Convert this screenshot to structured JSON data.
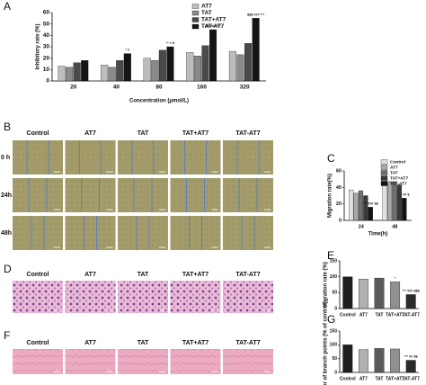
{
  "chart_data": [
    {
      "type": "bar",
      "panel": "A",
      "y_label": "Inhibitory rate (%)",
      "x_label": "Concentration (μmol/L)",
      "categories": [
        "20",
        "40",
        "80",
        "160",
        "320"
      ],
      "series": [
        {
          "name": "AT7",
          "color": "#bdbdbd",
          "values": [
            13,
            14,
            20,
            25,
            26
          ]
        },
        {
          "name": "TAT",
          "color": "#8a8a8a",
          "values": [
            12,
            12,
            18,
            22,
            23
          ]
        },
        {
          "name": "TAT+AT7",
          "color": "#4a4a4a",
          "values": [
            16,
            18,
            27,
            31,
            33
          ]
        },
        {
          "name": "TAT-AT7",
          "color": "#151515",
          "values": [
            18,
            24,
            30,
            45,
            55
          ]
        }
      ],
      "annotations": [
        null,
        "* #",
        "** # $",
        "$$ ### ***",
        "$$$ ### ***"
      ],
      "ylim": [
        0,
        60
      ],
      "yticks": [
        0,
        10,
        20,
        30,
        40,
        50,
        60
      ]
    },
    {
      "type": "bar",
      "panel": "C",
      "y_label": "Migration rate(%)",
      "x_label": "Time(h)",
      "categories": [
        "24",
        "48"
      ],
      "series": [
        {
          "name": "Control",
          "color": "#e0e0e0",
          "values": [
            37,
            52
          ]
        },
        {
          "name": "AT7",
          "color": "#a8a8a8",
          "values": [
            33,
            47
          ]
        },
        {
          "name": "TAT",
          "color": "#6e6e6e",
          "values": [
            36,
            47
          ]
        },
        {
          "name": "TAT+AT7",
          "color": "#3a3a3a",
          "values": [
            30,
            43
          ]
        },
        {
          "name": "TAT-AT7",
          "color": "#121212",
          "values": [
            16,
            27
          ]
        }
      ],
      "annotations": [
        "*** ### $$",
        "** ## $"
      ],
      "ylim": [
        0,
        60
      ],
      "yticks": [
        0,
        20,
        40,
        60
      ]
    },
    {
      "type": "bar",
      "panel": "E",
      "y_label": "Migration rate (%)",
      "categories": [
        "Control",
        "AT7",
        "TAT",
        "TAT+AT7",
        "TAT-AT7"
      ],
      "values": [
        100,
        93,
        96,
        84,
        44
      ],
      "colors": [
        "#1e1e1e",
        "#b0b0b0",
        "#5a5a5a",
        "#909090",
        "#2a2a2a"
      ],
      "annotations": [
        null,
        null,
        null,
        "*",
        "*** ### $$$"
      ],
      "ylim": [
        0,
        150
      ],
      "yticks": [
        0,
        50,
        100,
        150
      ]
    },
    {
      "type": "bar",
      "panel": "G",
      "y_label": "Number of branch points (% of control)",
      "categories": [
        "Control",
        "AT7",
        "TAT",
        "TAT+AT7",
        "TAT-AT7"
      ],
      "values": [
        100,
        83,
        87,
        85,
        44
      ],
      "colors": [
        "#1e1e1e",
        "#b0b0b0",
        "#5a5a5a",
        "#909090",
        "#2a2a2a"
      ],
      "annotations": [
        null,
        null,
        null,
        null,
        "*** ## $$"
      ],
      "ylim": [
        0,
        150
      ],
      "yticks": [
        0,
        50,
        100,
        150
      ]
    }
  ],
  "image_grids": [
    {
      "panel": "B",
      "columns": [
        "Control",
        "AT7",
        "TAT",
        "TAT+AT7",
        "TAT-AT7"
      ],
      "rows": [
        "0 h",
        "24h",
        "48h"
      ]
    },
    {
      "panel": "D",
      "columns": [
        "Control",
        "AT7",
        "TAT",
        "TAT+AT7",
        "TAT-AT7"
      ]
    },
    {
      "panel": "F",
      "columns": [
        "Control",
        "AT7",
        "TAT",
        "TAT+AT7",
        "TAT-AT7"
      ]
    }
  ]
}
